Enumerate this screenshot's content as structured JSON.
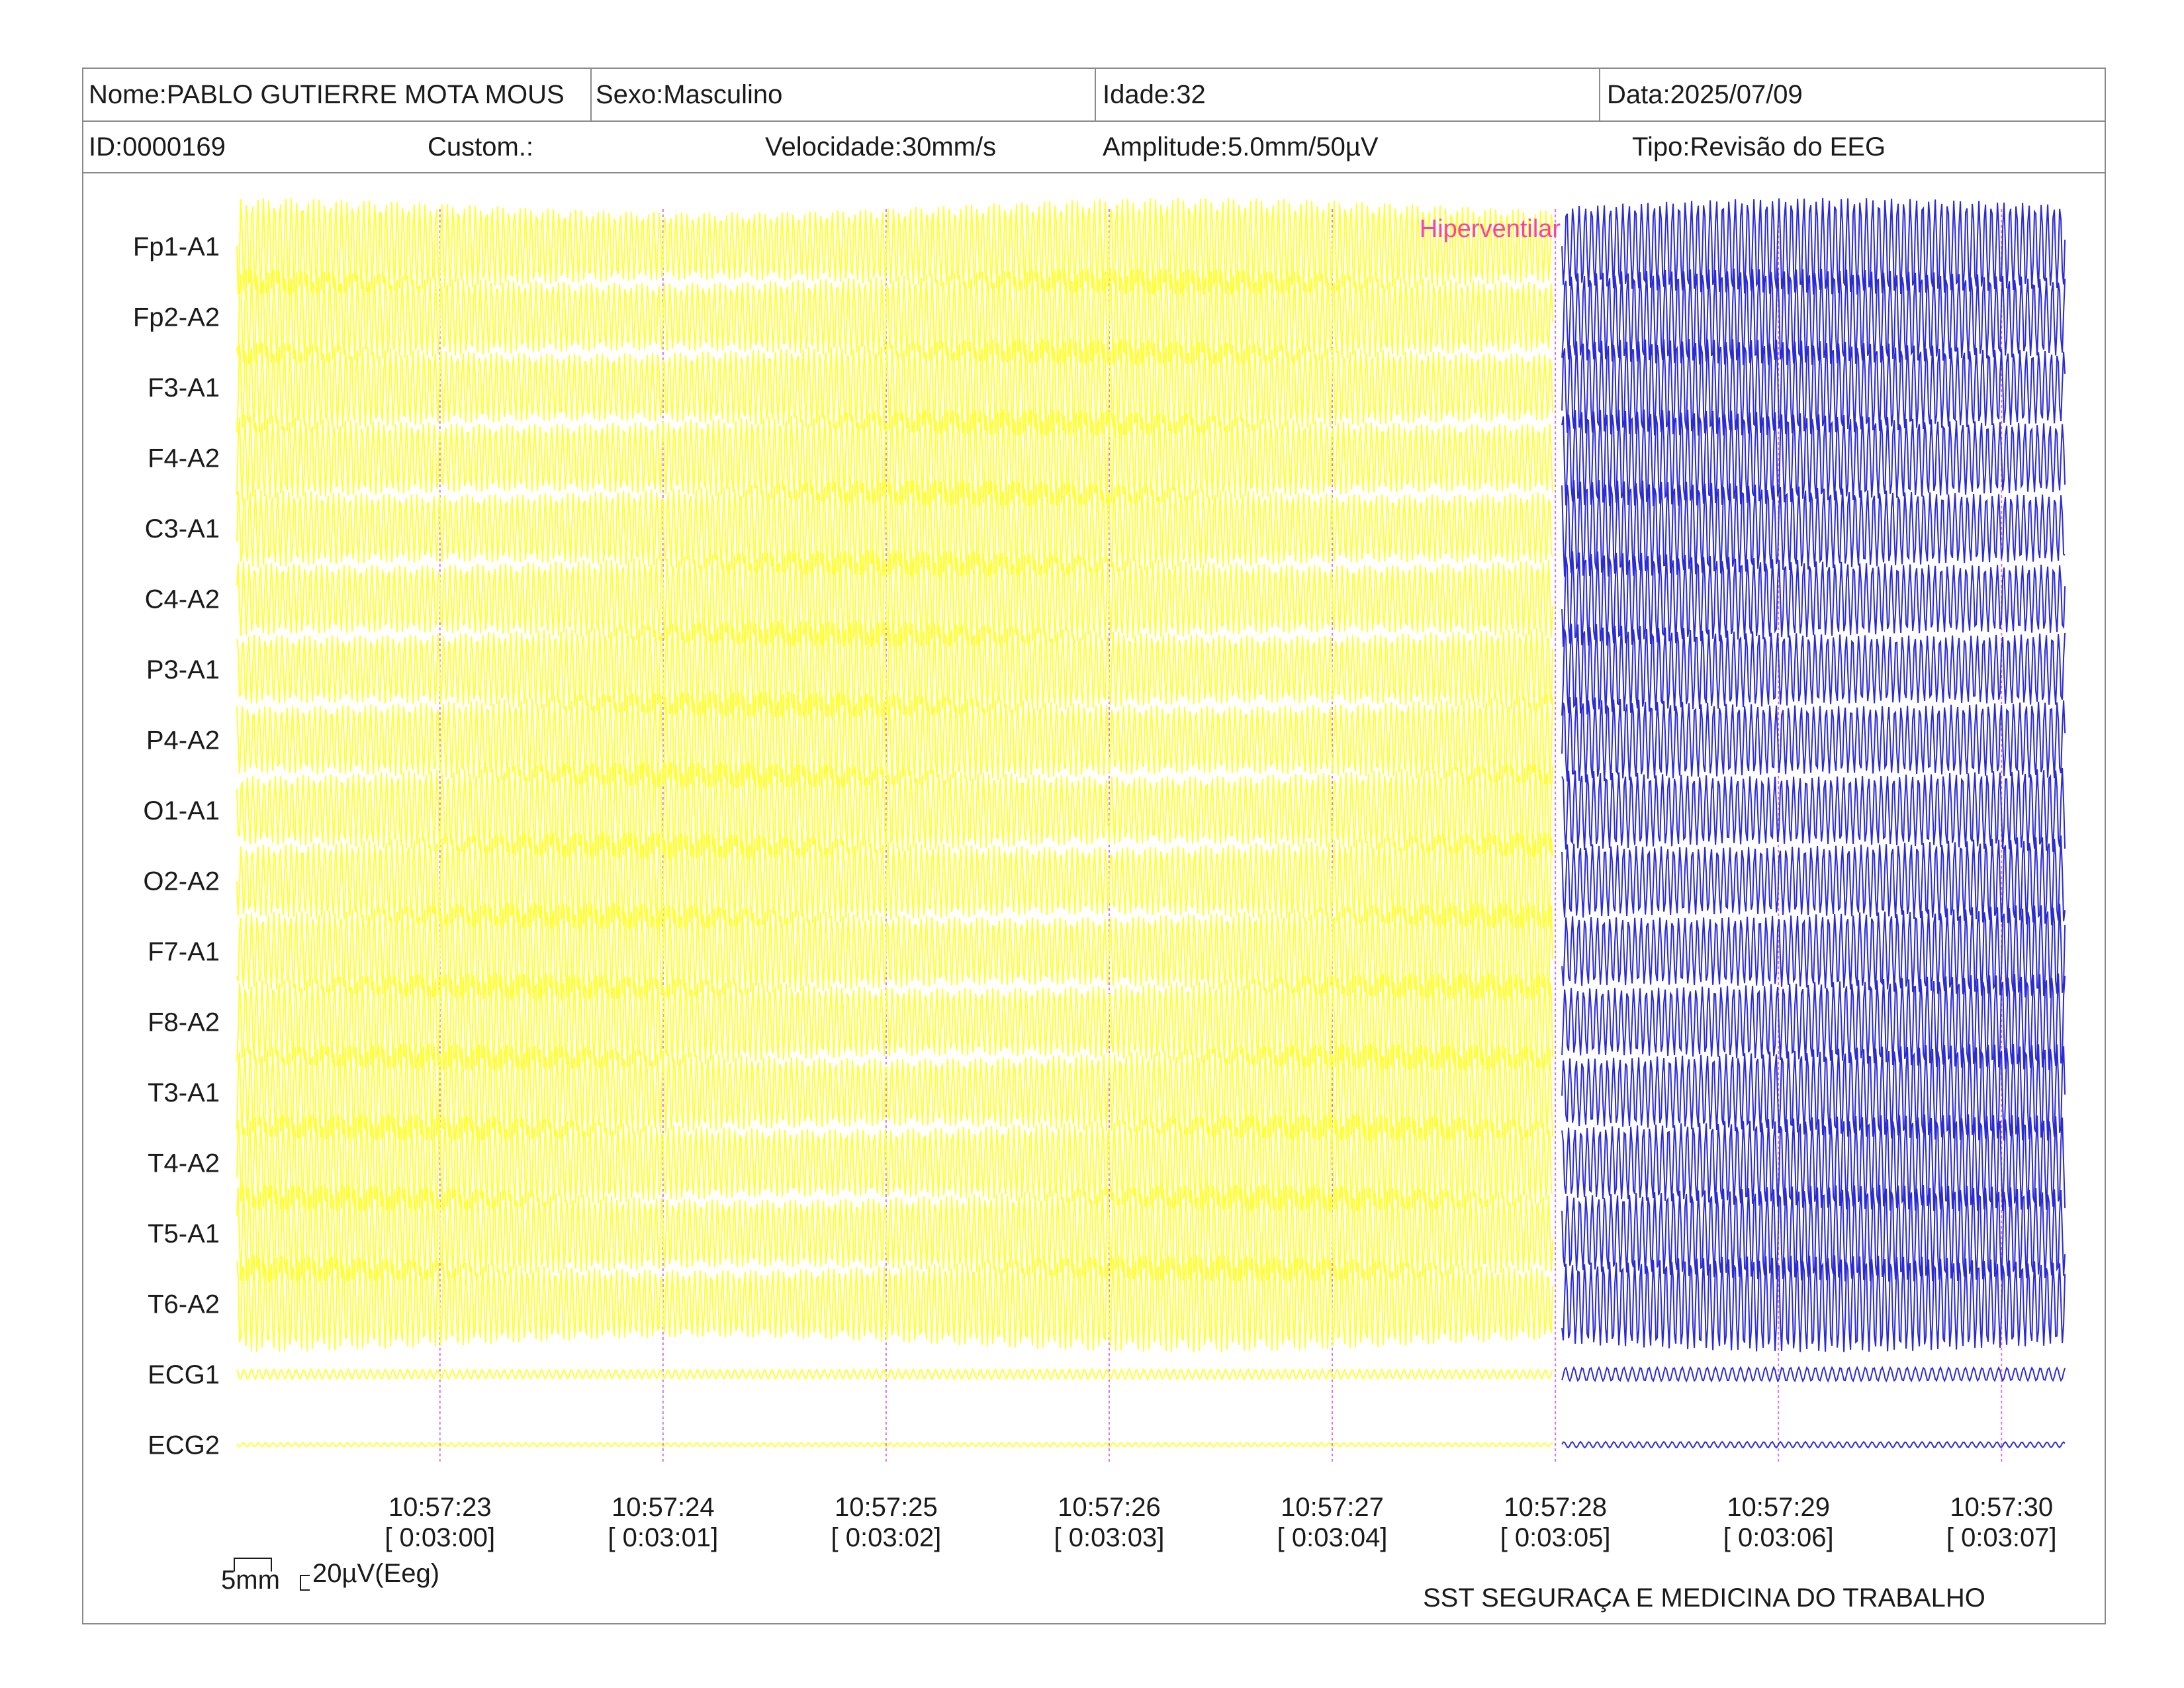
{
  "header": {
    "name": "Nome:PABLO GUTIERRE MOTA MOUS",
    "sex": "Sexo:Masculino",
    "age": "Idade:32",
    "date": "Data:2025/07/09",
    "id": "ID:0000169",
    "custom": "Custom.:",
    "speed": "Velocidade:30mm/s",
    "amplitude": "Amplitude:5.0mm/50µV",
    "type": "Tipo:Revisão do EEG"
  },
  "scale": {
    "time_label": "5mm",
    "amp_label": "20µV(Eeg)"
  },
  "footer": {
    "company": "SST SEGURAÇA E MEDICINA DO TRABALHO"
  },
  "colors": {
    "before_event": "#ffff33",
    "after_event": "#2b2bd6",
    "event_marker": "#ff3fa8",
    "second_marker": "#e070e0",
    "frame": "#8a8a8a"
  },
  "chart_data": {
    "type": "line",
    "channels": [
      "Fp1-A1",
      "Fp2-A2",
      "F3-A1",
      "F4-A2",
      "C3-A1",
      "C4-A2",
      "P3-A1",
      "P4-A2",
      "O1-A1",
      "O2-A2",
      "F7-A1",
      "F8-A2",
      "T3-A1",
      "T4-A2",
      "T5-A1",
      "T6-A2",
      "ECG1",
      "ECG2"
    ],
    "time_ticks": [
      {
        "clock": "10:57:23",
        "elapsed": "[ 0:03:00]"
      },
      {
        "clock": "10:57:24",
        "elapsed": "[ 0:03:01]"
      },
      {
        "clock": "10:57:25",
        "elapsed": "[ 0:03:02]"
      },
      {
        "clock": "10:57:26",
        "elapsed": "[ 0:03:03]"
      },
      {
        "clock": "10:57:27",
        "elapsed": "[ 0:03:04]"
      },
      {
        "clock": "10:57:28",
        "elapsed": "[ 0:03:05]"
      },
      {
        "clock": "10:57:29",
        "elapsed": "[ 0:03:06]"
      },
      {
        "clock": "10:57:30",
        "elapsed": "[ 0:03:07]"
      }
    ],
    "x_range_seconds": [
      0,
      8.2
    ],
    "first_tick_second": 0.91,
    "event": {
      "label": "Hiperventilar",
      "second": 5.91
    },
    "eeg_frequency_hz": 40,
    "ecg_frequency_hz": 30
  }
}
